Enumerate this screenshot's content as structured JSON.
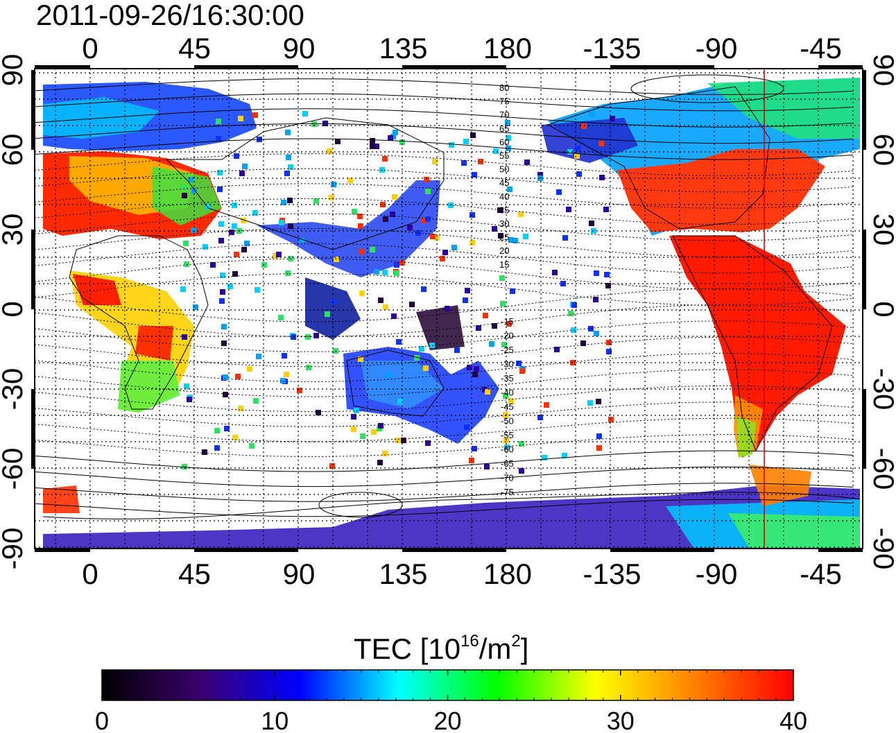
{
  "timestamp": "2011-09-26/16:30:00",
  "map": {
    "top_lon_labels": [
      "0",
      "45",
      "90",
      "135",
      "180",
      "-135",
      "-90",
      "-45"
    ],
    "bottom_lon_labels": [
      "0",
      "45",
      "90",
      "135",
      "180",
      "-135",
      "-90",
      "-45"
    ],
    "left_lat_labels": [
      "90",
      "60",
      "30",
      "0",
      "-30",
      "-60",
      "-90"
    ],
    "right_lat_labels": [
      "90",
      "60",
      "30",
      "0",
      "-30",
      "-60",
      "-90"
    ],
    "mlat_labels_north": [
      "80",
      "75",
      "70",
      "65",
      "60",
      "55",
      "50",
      "45",
      "40",
      "35",
      "30",
      "25",
      "20",
      "15"
    ],
    "mlat_labels_south": [
      "-15",
      "-20",
      "-25",
      "-30",
      "-35",
      "-40",
      "-45",
      "-50",
      "-55",
      "-60",
      "-65",
      "-70",
      "-75"
    ],
    "grid": true,
    "terminator_color": "#e00000"
  },
  "colorbar": {
    "title_main": "TEC  [10",
    "title_exp1": "16",
    "title_mid": "/m",
    "title_exp2": "2",
    "title_end": "]",
    "tick_labels": [
      "0",
      "10",
      "20",
      "30",
      "40"
    ],
    "min": 0,
    "max": 40,
    "colors": [
      "#000000",
      "#3a006e",
      "#0000ff",
      "#00ffff",
      "#00ff00",
      "#ffff00",
      "#ff8000",
      "#ff0000"
    ]
  },
  "tec_regions": [
    {
      "name": "north-atlantic-europe",
      "value": 13
    },
    {
      "name": "europe",
      "value": 38
    },
    {
      "name": "africa",
      "value": 30
    },
    {
      "name": "south-asia",
      "value": 12
    },
    {
      "name": "australia",
      "value": 10
    },
    {
      "name": "north-america",
      "value": 38
    },
    {
      "name": "south-america",
      "value": 40
    },
    {
      "name": "antarctica",
      "value": 6
    }
  ]
}
